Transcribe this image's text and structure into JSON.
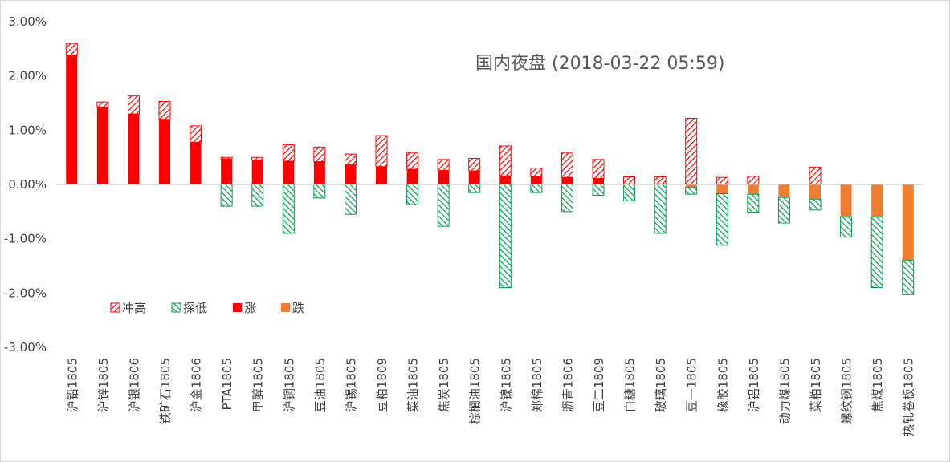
{
  "chart_data": {
    "type": "bar",
    "stacked": true,
    "title": "国内夜盘 (2018-03-22 05:59)",
    "xlabel": "",
    "ylabel": "",
    "ylim": [
      -3.0,
      3.0
    ],
    "y_ticks": [
      3.0,
      2.0,
      1.0,
      0.0,
      -1.0,
      -2.0,
      -3.0
    ],
    "y_tick_labels": [
      "3.00%",
      "2.00%",
      "1.00%",
      "0.00%",
      "-1.00%",
      "-2.00%",
      "-3.00%"
    ],
    "grid": false,
    "legend_position": "lower-left",
    "categories": [
      "沪铅1805",
      "沪锌1805",
      "沪银1806",
      "铁矿石1805",
      "沪金1806",
      "PTA1805",
      "甲醇1805",
      "沪铜1805",
      "豆油1805",
      "沪锡1805",
      "豆粕1809",
      "菜油1805",
      "焦炭1805",
      "棕榈油1805",
      "沪镍1805",
      "郑棉1805",
      "沥青1806",
      "豆二1809",
      "白糖1805",
      "玻璃1805",
      "豆一1805",
      "橡胶1805",
      "沪铝1805",
      "动力煤1805",
      "菜粕1805",
      "螺纹钢1805",
      "焦煤1805",
      "热轧卷板1805"
    ],
    "series": [
      {
        "name": "冲高",
        "color": "#ff0000",
        "pattern": "hatch",
        "values": [
          0.22,
          0.1,
          0.33,
          0.33,
          0.3,
          0.03,
          0.05,
          0.3,
          0.27,
          0.2,
          0.57,
          0.3,
          0.2,
          0.23,
          0.55,
          0.15,
          0.45,
          0.35,
          0.13,
          0.13,
          1.22,
          0.13,
          0.15,
          0.0,
          0.32,
          0.0,
          0.0,
          0.0
        ]
      },
      {
        "name": "探低",
        "color": "#00a050",
        "pattern": "hatch",
        "values": [
          0.0,
          0.0,
          0.0,
          0.0,
          0.0,
          -0.4,
          -0.4,
          -0.9,
          -0.25,
          -0.55,
          0.0,
          -0.37,
          -0.77,
          -0.15,
          -1.9,
          -0.15,
          -0.5,
          -0.2,
          -0.3,
          -0.9,
          -0.13,
          -0.95,
          -0.33,
          -0.47,
          -0.2,
          -0.37,
          -1.3,
          -0.63
        ]
      },
      {
        "name": "涨",
        "color": "#ff0000",
        "pattern": "solid",
        "values": [
          2.38,
          1.42,
          1.3,
          1.2,
          0.78,
          0.47,
          0.45,
          0.43,
          0.42,
          0.36,
          0.33,
          0.28,
          0.26,
          0.25,
          0.16,
          0.15,
          0.13,
          0.11,
          0.01,
          0.01,
          0.0,
          0.0,
          0.0,
          0.0,
          0.0,
          0.0,
          0.0,
          0.0
        ]
      },
      {
        "name": "跌",
        "color": "#ed7d31",
        "pattern": "solid",
        "values": [
          0.0,
          0.0,
          0.0,
          0.0,
          0.0,
          0.0,
          0.0,
          0.0,
          0.0,
          0.0,
          0.0,
          0.0,
          0.0,
          0.0,
          0.0,
          0.0,
          0.0,
          0.0,
          0.0,
          0.0,
          -0.05,
          -0.17,
          -0.18,
          -0.24,
          -0.27,
          -0.6,
          -0.6,
          -1.4
        ]
      }
    ]
  }
}
